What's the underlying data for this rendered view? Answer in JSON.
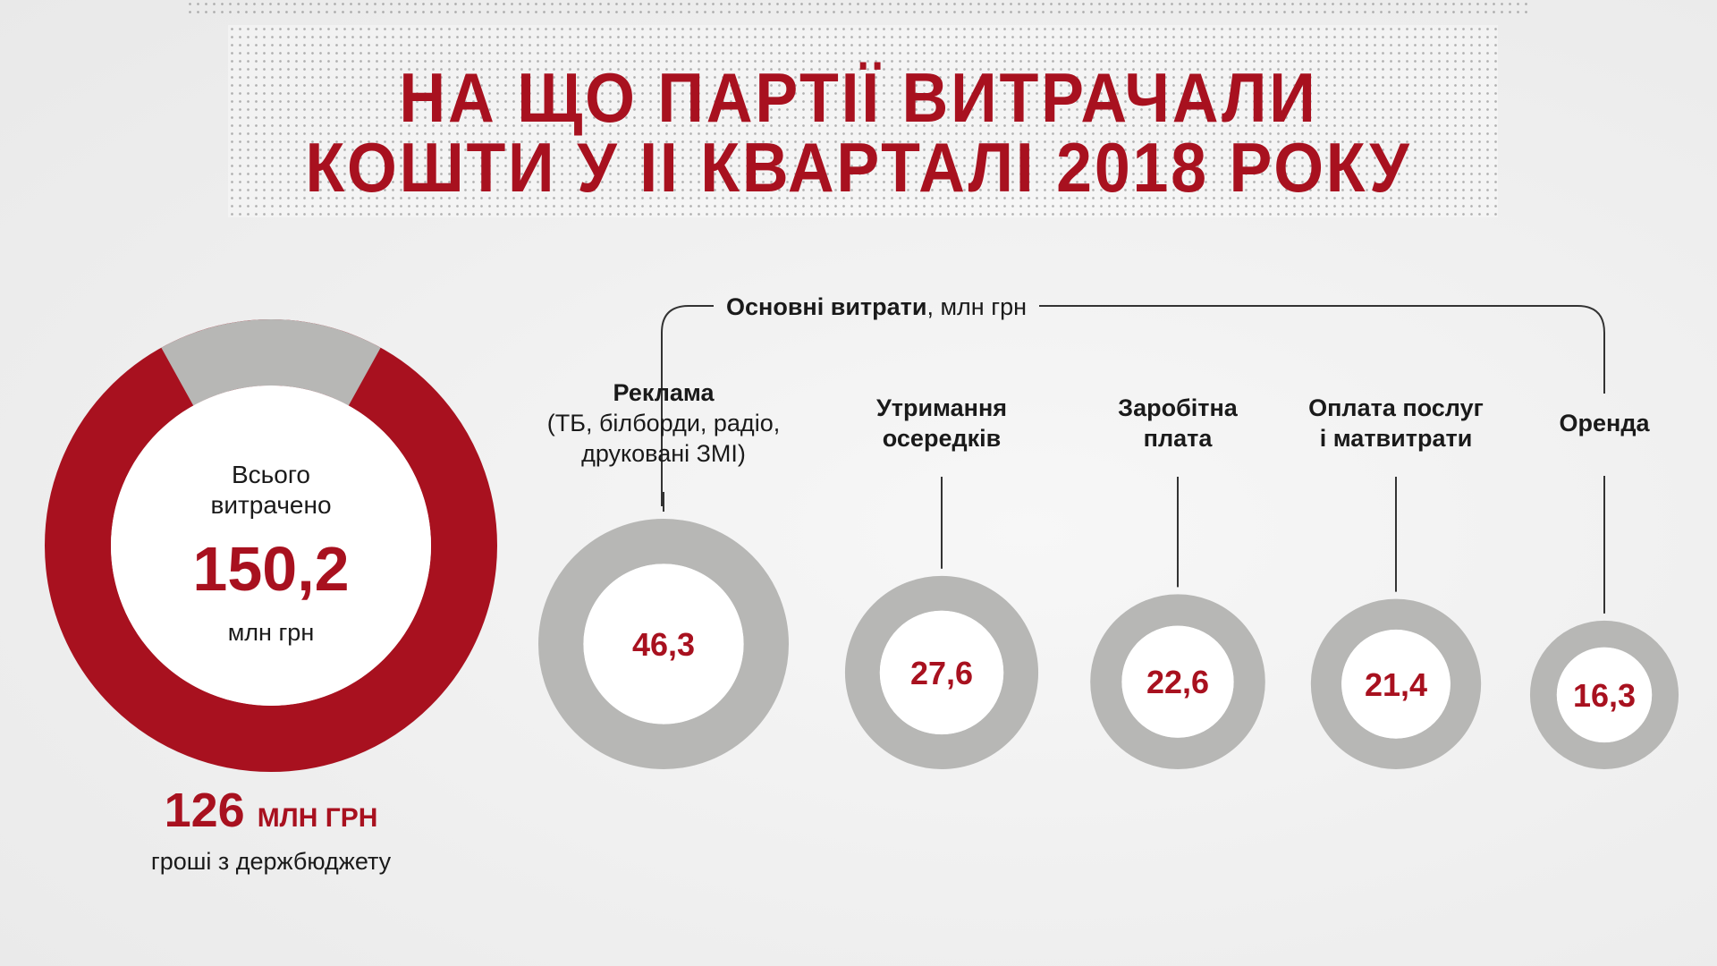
{
  "title": {
    "line1": "НА ЩО ПАРТІЇ ВИТРАЧАЛИ",
    "line2": "КОШТИ У ІІ КВАРТАЛІ 2018 РОКУ"
  },
  "bracket_label": {
    "bold": "Основні витрати",
    "rest": ", млн грн"
  },
  "colors": {
    "accent_red": "#a8111f",
    "ring_grey": "#b7b7b5",
    "text_dark": "#1a1a1a"
  },
  "total": {
    "label_line1": "Всього",
    "label_line2": "витрачено",
    "value": "150,2",
    "unit": "млн грн",
    "budget_value": "126",
    "budget_unit": "МЛН ГРН",
    "budget_caption": "гроші з держбюджету"
  },
  "chart_data": {
    "type": "donut",
    "total": 150.2,
    "state_budget": 126,
    "unit": "млн грн",
    "categories": [
      {
        "name": "Реклама",
        "lines": [
          "Реклама"
        ],
        "sub": [
          "(ТБ, білборди, радіо,",
          "друковані ЗМІ)"
        ],
        "value": 46.3,
        "label": "46,3"
      },
      {
        "name": "Утримання осередків",
        "lines": [
          "Утримання",
          "осередків"
        ],
        "sub": [],
        "value": 27.6,
        "label": "27,6"
      },
      {
        "name": "Заробітна плата",
        "lines": [
          "Заробітна",
          "плата"
        ],
        "sub": [],
        "value": 22.6,
        "label": "22,6"
      },
      {
        "name": "Оплата послуг і матвитрати",
        "lines": [
          "Оплата послуг",
          "і матвитрати"
        ],
        "sub": [],
        "value": 21.4,
        "label": "21,4"
      },
      {
        "name": "Оренда",
        "lines": [
          "Оренда"
        ],
        "sub": [],
        "value": 16.3,
        "label": "16,3"
      }
    ]
  }
}
